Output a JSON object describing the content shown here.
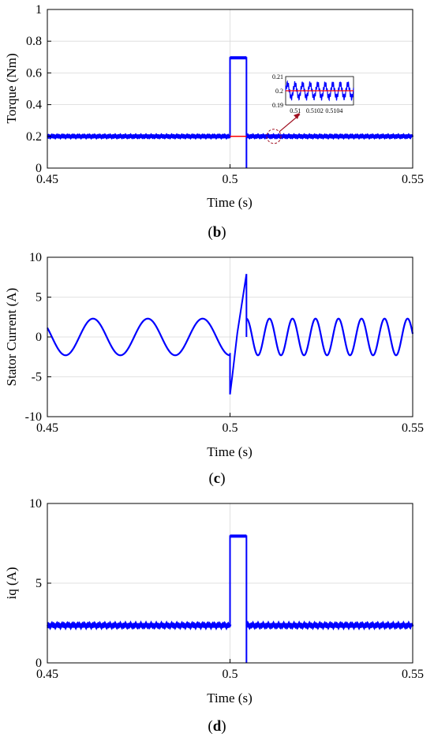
{
  "colors": {
    "signal": "#0000ff",
    "reference": "#ff0000",
    "inset_arrow": "#a01020",
    "axis": "#000000",
    "grid": "#d9d9d9"
  },
  "chart_data": [
    {
      "id": "b",
      "type": "line",
      "panel_label": "b",
      "xlabel": "Time (s)",
      "ylabel": "Torque (Nm)",
      "xlim": [
        0.45,
        0.55
      ],
      "ylim": [
        0,
        1
      ],
      "xticks": [
        0.45,
        0.5,
        0.55
      ],
      "xtick_labels": [
        "0.45",
        "0.5",
        "0.55"
      ],
      "yticks": [
        0,
        0.2,
        0.4,
        0.6,
        0.8,
        1
      ],
      "ytick_labels": [
        "0",
        "0.2",
        "0.4",
        "0.6",
        "0.8",
        "1"
      ],
      "grid": true,
      "series": [
        {
          "role": "measured torque",
          "color": "#0000ff",
          "baseline": 0.2,
          "ripple": 0.005,
          "step": {
            "start": 0.5,
            "end": 0.5045,
            "value": 0.695
          },
          "dip_at": 0.5045,
          "dip_value": 0.0
        },
        {
          "role": "reference torque",
          "color": "#ff0000",
          "segments": [
            {
              "x": [
                0.5,
                0.5045
              ],
              "y": [
                0.2,
                0.2
              ]
            }
          ]
        }
      ],
      "inset": {
        "xlim": [
          0.5099,
          0.5106
        ],
        "ylim": [
          0.19,
          0.21
        ],
        "xticks": [
          0.51,
          0.5102,
          0.5104
        ],
        "xtick_labels": [
          "0.51",
          "0.5102",
          "0.5104"
        ],
        "yticks": [
          0.19,
          0.2,
          0.21
        ],
        "ytick_labels": [
          "0.19",
          "0.2",
          "0.21"
        ],
        "mean": 0.2,
        "ripple_amplitude": 0.006,
        "ripple_cycles": 9,
        "zoom_target_x": 0.512,
        "zoom_target_y": 0.2
      }
    },
    {
      "id": "c",
      "type": "line",
      "panel_label": "c",
      "xlabel": "Time (s)",
      "ylabel": "Stator Current (A)",
      "xlim": [
        0.45,
        0.55
      ],
      "ylim": [
        -10,
        10
      ],
      "xticks": [
        0.45,
        0.5,
        0.55
      ],
      "xtick_labels": [
        "0.45",
        "0.5",
        "0.55"
      ],
      "yticks": [
        -10,
        -5,
        0,
        5,
        10
      ],
      "ytick_labels": [
        "-10",
        "-5",
        "0",
        "5",
        "10"
      ],
      "grid": true,
      "series": [
        {
          "role": "stator current",
          "color": "#0000ff",
          "before": {
            "from": 0.45,
            "to": 0.5,
            "amplitude": 2.3,
            "period": 0.015,
            "peak_at": 0.4625
          },
          "transient": {
            "from": 0.5,
            "to": 0.5045,
            "start_value": -7.2,
            "end_value": 7.9
          },
          "after": {
            "from": 0.5045,
            "to": 0.55,
            "amplitude": 2.3,
            "period": 0.0063,
            "start_value": 2.3
          }
        }
      ]
    },
    {
      "id": "d",
      "type": "line",
      "panel_label": "d",
      "xlabel": "Time (s)",
      "ylabel": "iq (A)",
      "xlim": [
        0.45,
        0.55
      ],
      "ylim": [
        0,
        10
      ],
      "xticks": [
        0.45,
        0.5,
        0.55
      ],
      "xtick_labels": [
        "0.45",
        "0.5",
        "0.55"
      ],
      "yticks": [
        0,
        5,
        10
      ],
      "ytick_labels": [
        "0",
        "5",
        "10"
      ],
      "grid": true,
      "series": [
        {
          "role": "q-axis current",
          "color": "#0000ff",
          "baseline": 2.35,
          "ripple": 0.08,
          "step": {
            "start": 0.5,
            "end": 0.5045,
            "value": 7.95
          },
          "dip_at": 0.5045,
          "dip_value": 0.0
        }
      ]
    }
  ]
}
